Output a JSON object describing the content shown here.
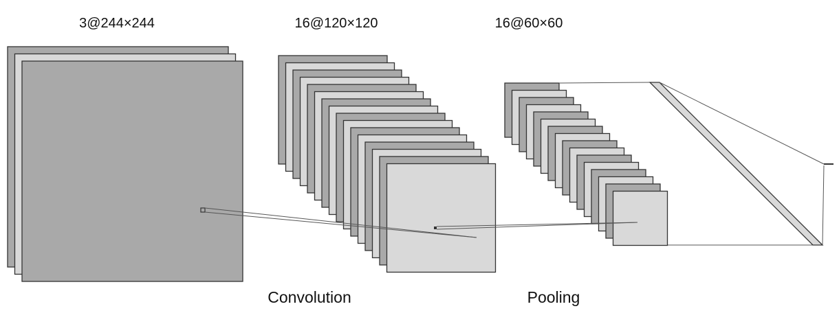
{
  "labels": {
    "input_shape": "3@244×244",
    "conv_shape": "16@120×120",
    "pool_shape": "16@60×60",
    "conv_op": "Convolution",
    "pool_op": "Pooling"
  },
  "colors": {
    "map_dark": "#a9a9a9",
    "map_light": "#d9d9d9",
    "outline": "#333333",
    "thin_line": "#555555"
  },
  "layers": [
    {
      "name": "input",
      "maps": 3
    },
    {
      "name": "conv",
      "maps": 16
    },
    {
      "name": "pool",
      "maps": 16
    }
  ]
}
